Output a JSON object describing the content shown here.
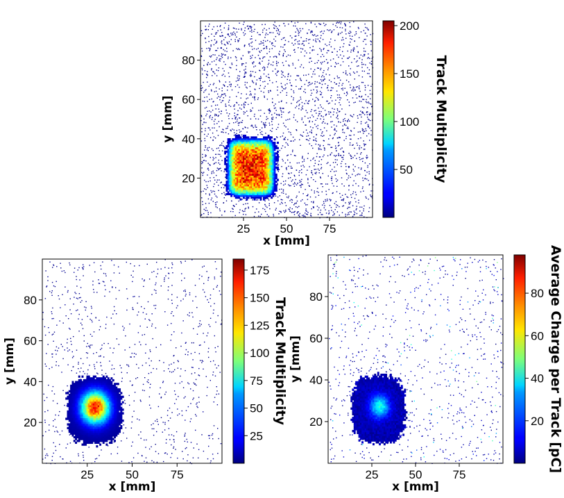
{
  "chart_data": [
    {
      "type": "heatmap",
      "xlabel": "x [mm]",
      "ylabel": "y [mm]",
      "xlim": [
        0,
        100
      ],
      "ylim": [
        0,
        100
      ],
      "xticks": [
        25,
        50,
        75
      ],
      "yticks": [
        20,
        40,
        60,
        80
      ],
      "hotspot": {
        "shape": "square",
        "x_range": [
          15,
          43
        ],
        "y_range": [
          10,
          40
        ],
        "center": [
          29,
          26
        ],
        "peak": 200
      },
      "colorbar": {
        "label": "Track Multiplicity",
        "range": [
          0,
          205
        ],
        "ticks": [
          50,
          100,
          150,
          200
        ]
      },
      "colormap": "jet",
      "grid": false
    },
    {
      "type": "heatmap",
      "xlabel": "x [mm]",
      "ylabel": "y [mm]",
      "xlim": [
        0,
        100
      ],
      "ylim": [
        0,
        100
      ],
      "xticks": [
        25,
        50,
        75
      ],
      "yticks": [
        20,
        40,
        60,
        80
      ],
      "hotspot": {
        "shape": "round",
        "x_range": [
          14,
          43
        ],
        "y_range": [
          10,
          41
        ],
        "center": [
          29,
          27
        ],
        "peak": 180
      },
      "colorbar": {
        "label": "Track Multiplicity",
        "range": [
          0,
          185
        ],
        "ticks": [
          25,
          50,
          75,
          100,
          125,
          150,
          175
        ]
      },
      "colormap": "jet",
      "grid": false
    },
    {
      "type": "heatmap",
      "xlabel": "x [mm]",
      "ylabel": "y [mm]",
      "xlim": [
        0,
        100
      ],
      "ylim": [
        0,
        100
      ],
      "xticks": [
        25,
        50,
        75
      ],
      "yticks": [
        20,
        40,
        60,
        80
      ],
      "hotspot": {
        "shape": "round",
        "x_range": [
          14,
          43
        ],
        "y_range": [
          10,
          41
        ],
        "center": [
          29,
          27
        ],
        "peak": 40
      },
      "colorbar": {
        "label": "Average Charge per Track [pC]",
        "range": [
          0,
          98
        ],
        "ticks": [
          20,
          40,
          60,
          80
        ]
      },
      "colormap": "jet",
      "grid": false
    }
  ]
}
